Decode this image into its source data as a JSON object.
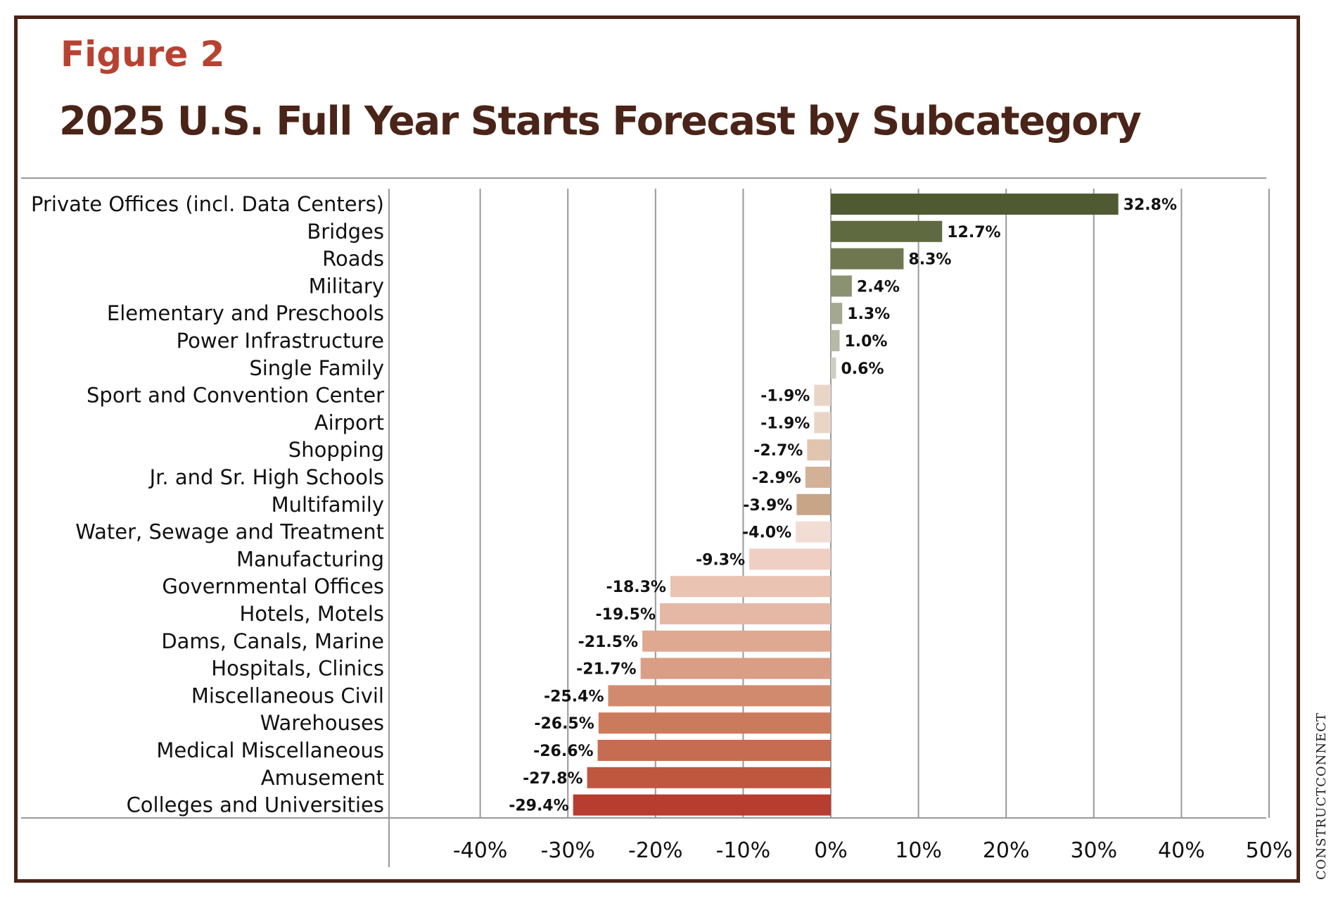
{
  "figure_label": "Figure 2",
  "credit": "CONSTRUCTCONNECT",
  "chart_data": {
    "type": "bar",
    "orientation": "horizontal",
    "title": "2025 U.S. Full Year Starts Forecast by Subcategory",
    "xlim": [
      -50,
      50
    ],
    "x_ticks": [
      -40,
      -30,
      -20,
      -10,
      0,
      10,
      20,
      30,
      40,
      50
    ],
    "x_tick_labels": [
      "-40%",
      "-30%",
      "-20%",
      "-10%",
      "0%",
      "10%",
      "20%",
      "30%",
      "40%",
      "50%"
    ],
    "grid": "vertical",
    "categories": [
      "Private Offices (incl. Data Centers)",
      "Bridges",
      "Roads",
      "Military",
      "Elementary and Preschools",
      "Power Infrastructure",
      "Single Family",
      "Sport and Convention Center",
      "Airport",
      "Shopping",
      "Jr. and Sr. High Schools",
      "Multifamily",
      "Water, Sewage and Treatment",
      "Manufacturing",
      "Governmental Offices",
      "Hotels, Motels",
      "Dams, Canals, Marine",
      "Hospitals, Clinics",
      "Miscellaneous Civil",
      "Warehouses",
      "Medical Miscellaneous",
      "Amusement",
      "Colleges and Universities"
    ],
    "values": [
      32.8,
      12.7,
      8.3,
      2.4,
      1.3,
      1.0,
      0.6,
      -1.9,
      -1.9,
      -2.7,
      -2.9,
      -3.9,
      -4.0,
      -9.3,
      -18.3,
      -19.5,
      -21.5,
      -21.7,
      -25.4,
      -26.5,
      -26.6,
      -27.8,
      -29.4
    ],
    "value_labels": [
      "32.8%",
      "12.7%",
      "8.3%",
      "2.4%",
      "1.3%",
      "1.0%",
      "0.6%",
      "-1.9%",
      "-1.9%",
      "-2.7%",
      "-2.9%",
      "-3.9%",
      "-4.0%",
      "-9.3%",
      "-18.3%",
      "-19.5%",
      "-21.5%",
      "-21.7%",
      "-25.4%",
      "-26.5%",
      "-26.6%",
      "-27.8%",
      "-29.4%"
    ],
    "colors": [
      "#4f5a32",
      "#5f6a40",
      "#6f7750",
      "#8b9272",
      "#a3a88f",
      "#b5b9a5",
      "#cdcfc2",
      "#e9d5c8",
      "#e9d5c8",
      "#e0c5b0",
      "#d3b197",
      "#c7a587",
      "#f2ddd4",
      "#efcfc3",
      "#eac3b3",
      "#e5b8a6",
      "#dfa890",
      "#da9d85",
      "#d28a6e",
      "#cc7a5c",
      "#c66c50",
      "#bf573f",
      "#b63d30"
    ]
  }
}
